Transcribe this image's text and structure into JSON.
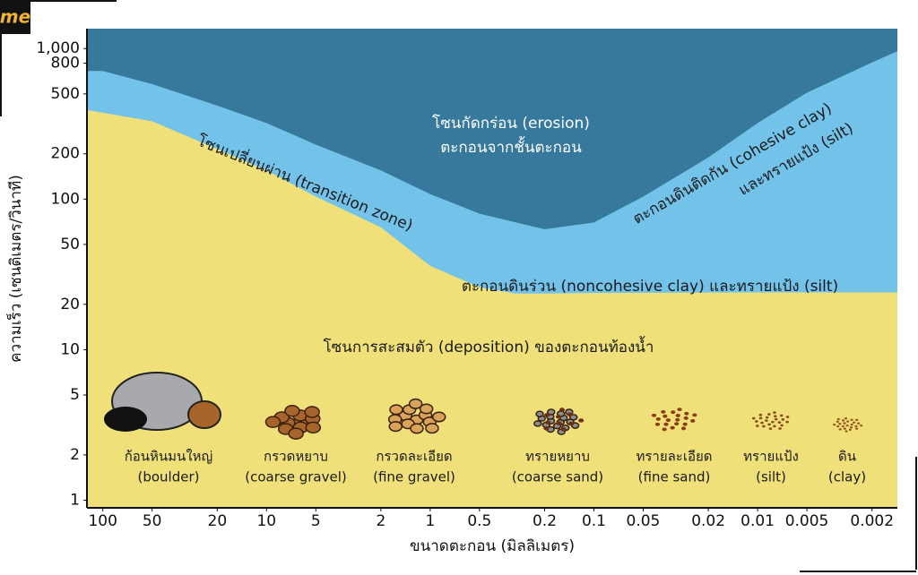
{
  "logo": "me",
  "chart_data": {
    "type": "area",
    "xscale": "log",
    "yscale": "log",
    "xlabel": "ขนาดตะกอน (มิลลิเมตร)",
    "ylabel": "ความเร็ว (เซนติเมตร/วินาที)",
    "xlim": [
      125,
      0.0014
    ],
    "ylim": [
      0.89,
      1356
    ],
    "xticks": [
      100,
      50,
      20,
      10,
      5,
      2,
      1,
      0.5,
      0.2,
      0.1,
      0.05,
      0.02,
      0.01,
      0.005,
      0.002
    ],
    "yticks": [
      1,
      2,
      5,
      10,
      20,
      50,
      100,
      200,
      500,
      800,
      {
        "value": 1000,
        "label": "1,000"
      }
    ],
    "background_color": "#37799d",
    "series": [
      {
        "color": "#73c2ea",
        "x": [
          125,
          100,
          50,
          20,
          10,
          5,
          2,
          1,
          0.5,
          0.2,
          0.1,
          0.05,
          0.02,
          0.01,
          0.005,
          0.002,
          0.0014
        ],
        "values": [
          710,
          710,
          581,
          418,
          320,
          230,
          155,
          108,
          80,
          63,
          70,
          104,
          189,
          320,
          509,
          809,
          961
        ]
      },
      {
        "color": "#efe07a",
        "x": [
          125,
          50,
          20,
          10,
          5,
          2,
          1,
          0.5,
          0.3,
          0.2,
          0.1,
          0.01,
          0.0014
        ],
        "values": [
          391,
          329,
          215,
          155,
          104,
          65,
          36,
          26,
          23.6,
          23.6,
          23.8,
          24,
          24
        ]
      }
    ],
    "annotations": [
      "โซนกัดกร่อน (erosion)",
      "ตะกอนจากชั้นตะกอน",
      "โซนเปลี่ยนผ่าน (transition zone)",
      "ตะกอนดินติดกัน (cohesive clay)",
      "และทรายแป้ง (silt)",
      "ตะกอนดินร่วน (noncohesive clay) และทรายแป้ง (silt)",
      "โซนการสะสมตัว (deposition) ของตะกอนท้องน้ำ"
    ],
    "sediments": [
      {
        "th": "ก้อนหินมนใหญ่",
        "en": "(boulder)"
      },
      {
        "th": "กรวดหยาบ",
        "en": "(coarse gravel)"
      },
      {
        "th": "กรวดละเอียด",
        "en": "(fine gravel)"
      },
      {
        "th": "ทรายหยาบ",
        "en": "(coarse sand)"
      },
      {
        "th": "ทรายละเอียด",
        "en": "(fine sand)"
      },
      {
        "th": "ทรายแป้ง",
        "en": "(silt)"
      },
      {
        "th": "ดิน",
        "en": "(clay)"
      }
    ]
  }
}
